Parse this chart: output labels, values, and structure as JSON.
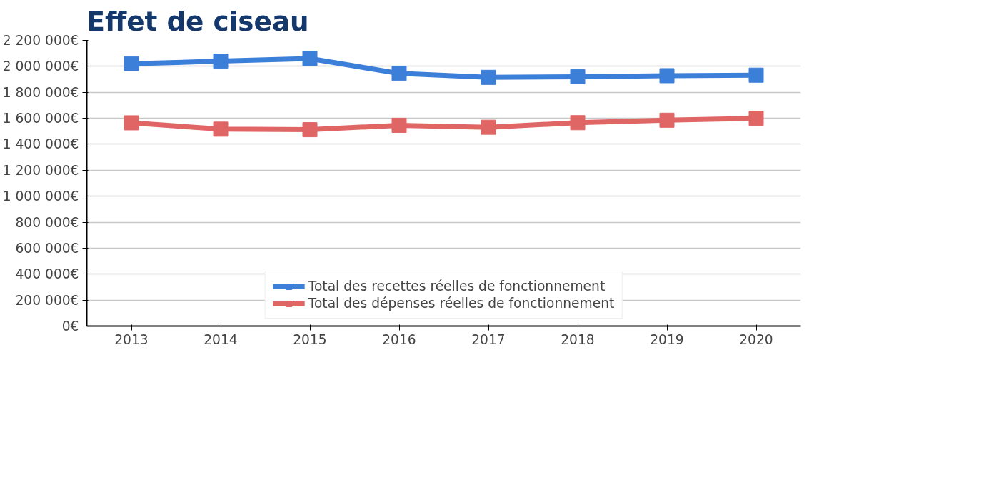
{
  "chart_data": {
    "type": "line",
    "title": "Effet de ciseau",
    "categories": [
      "2013",
      "2014",
      "2015",
      "2016",
      "2017",
      "2018",
      "2019",
      "2020"
    ],
    "series": [
      {
        "name": "Total des recettes réelles de fonctionnement",
        "color": "#3c7fd9",
        "values": [
          2020000,
          2040000,
          2060000,
          1945000,
          1915000,
          1920000,
          1928000,
          1932000
        ]
      },
      {
        "name": "Total des dépenses réelles de fonctionnement",
        "color": "#e06666",
        "values": [
          1565000,
          1516000,
          1512000,
          1546000,
          1531000,
          1566000,
          1585000,
          1600000
        ]
      }
    ],
    "ylim": [
      0,
      2200000
    ],
    "yticks": [
      {
        "value": 0,
        "label": "0€"
      },
      {
        "value": 200000,
        "label": "200 000€"
      },
      {
        "value": 400000,
        "label": "400 000€"
      },
      {
        "value": 600000,
        "label": "600 000€"
      },
      {
        "value": 800000,
        "label": "800 000€"
      },
      {
        "value": 1000000,
        "label": "1 000 000€"
      },
      {
        "value": 1200000,
        "label": "1 200 000€"
      },
      {
        "value": 1400000,
        "label": "1 400 000€"
      },
      {
        "value": 1600000,
        "label": "1 600 000€"
      },
      {
        "value": 1800000,
        "label": "1 800 000€"
      },
      {
        "value": 2000000,
        "label": "2 000 000€"
      },
      {
        "value": 2200000,
        "label": "2 200 000€"
      }
    ],
    "grid": "y",
    "legend": "bottom",
    "marker": "square",
    "line_style": "solid"
  }
}
